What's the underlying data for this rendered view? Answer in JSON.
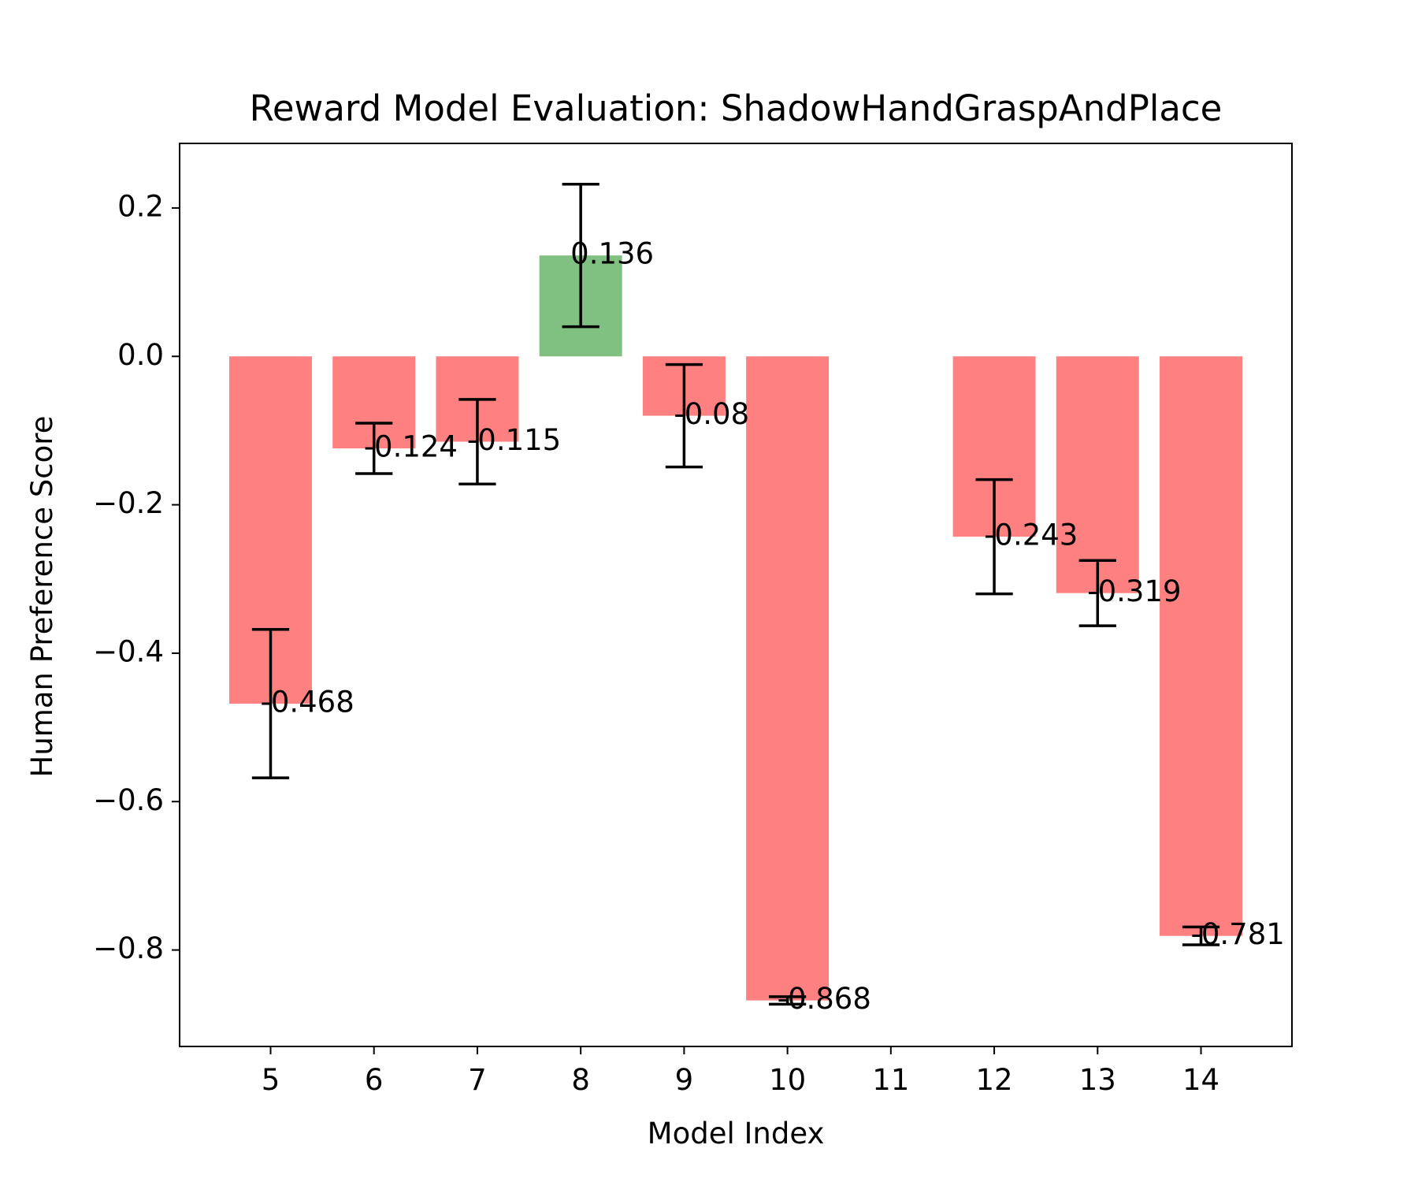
{
  "chart_data": {
    "type": "bar",
    "title": "Reward Model Evaluation: ShadowHandGraspAndPlace",
    "xlabel": "Model Index",
    "ylabel": "Human Preference Score",
    "categories": [
      "5",
      "6",
      "7",
      "8",
      "9",
      "10",
      "11",
      "12",
      "13",
      "14"
    ],
    "x": [
      5,
      6,
      7,
      8,
      9,
      10,
      11,
      12,
      13,
      14
    ],
    "values": [
      -0.468,
      -0.124,
      -0.115,
      0.136,
      -0.08,
      -0.868,
      null,
      -0.243,
      -0.319,
      -0.781
    ],
    "errors": [
      0.1,
      0.034,
      0.057,
      0.096,
      0.069,
      0.005,
      null,
      0.077,
      0.044,
      0.012
    ],
    "data_labels": [
      "-0.468",
      "-0.124",
      "-0.115",
      "0.136",
      "-0.08",
      "-0.868",
      "",
      "-0.243",
      "-0.319",
      "-0.781"
    ],
    "xticks": [
      "5",
      "6",
      "7",
      "8",
      "9",
      "10",
      "11",
      "12",
      "13",
      "14"
    ],
    "yticks": [
      0.2,
      0.0,
      -0.2,
      -0.4,
      -0.6,
      -0.8
    ],
    "ytick_labels": [
      "0.2",
      "0.0",
      "−0.2",
      "−0.4",
      "−0.6",
      "−0.8"
    ],
    "xlim": [
      4.12,
      14.88
    ],
    "ylim": [
      -0.93,
      0.287
    ],
    "grid": false,
    "colors": {
      "positive": "#80c080",
      "negative": "#ff8080",
      "errorbar": "#000000"
    }
  }
}
